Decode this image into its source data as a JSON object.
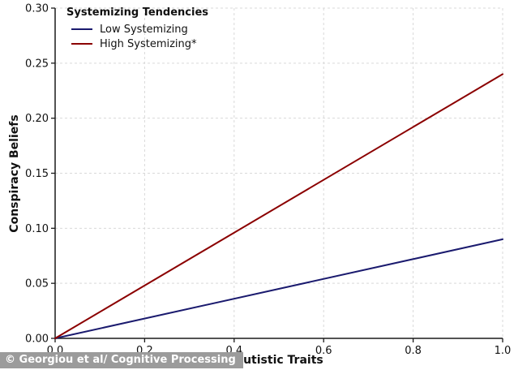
{
  "chart_data": {
    "type": "line",
    "title": "",
    "xlabel": "Autistic Traits",
    "ylabel": "Conspiracy Beliefs",
    "xlim": [
      0.0,
      1.0
    ],
    "ylim": [
      0.0,
      0.3
    ],
    "xticks": [
      0.0,
      0.2,
      0.4,
      0.6,
      0.8,
      1.0
    ],
    "yticks": [
      0.0,
      0.05,
      0.1,
      0.15,
      0.2,
      0.25,
      0.3
    ],
    "xtick_labels": [
      "0.0",
      "0.2",
      "0.4",
      "0.6",
      "0.8",
      "1.0"
    ],
    "ytick_labels": [
      "0.00",
      "0.05",
      "0.10",
      "0.15",
      "0.20",
      "0.25",
      "0.30"
    ],
    "grid": true,
    "grid_style": "dashed",
    "legend": {
      "title": "Systemizing Tendencies",
      "position": "top-left",
      "entries": [
        {
          "label": "Low Systemizing",
          "color": "#1a1a6e"
        },
        {
          "label": "High Systemizing*",
          "color": "#8b0000"
        }
      ]
    },
    "series": [
      {
        "name": "Low Systemizing",
        "color": "#1a1a6e",
        "x": [
          0.0,
          1.0
        ],
        "y": [
          0.0,
          0.09
        ]
      },
      {
        "name": "High Systemizing*",
        "color": "#8b0000",
        "x": [
          0.0,
          1.0
        ],
        "y": [
          0.0,
          0.24
        ]
      }
    ]
  },
  "watermark": {
    "text": "© Georgiou et al/ Cognitive Processing",
    "bg": "#9b9b9b",
    "fg": "#ffffff"
  },
  "colors": {
    "spine": "#1a1a1a",
    "grid": "#d9d9d9",
    "tick_label": "#111111",
    "background": "#ffffff"
  }
}
